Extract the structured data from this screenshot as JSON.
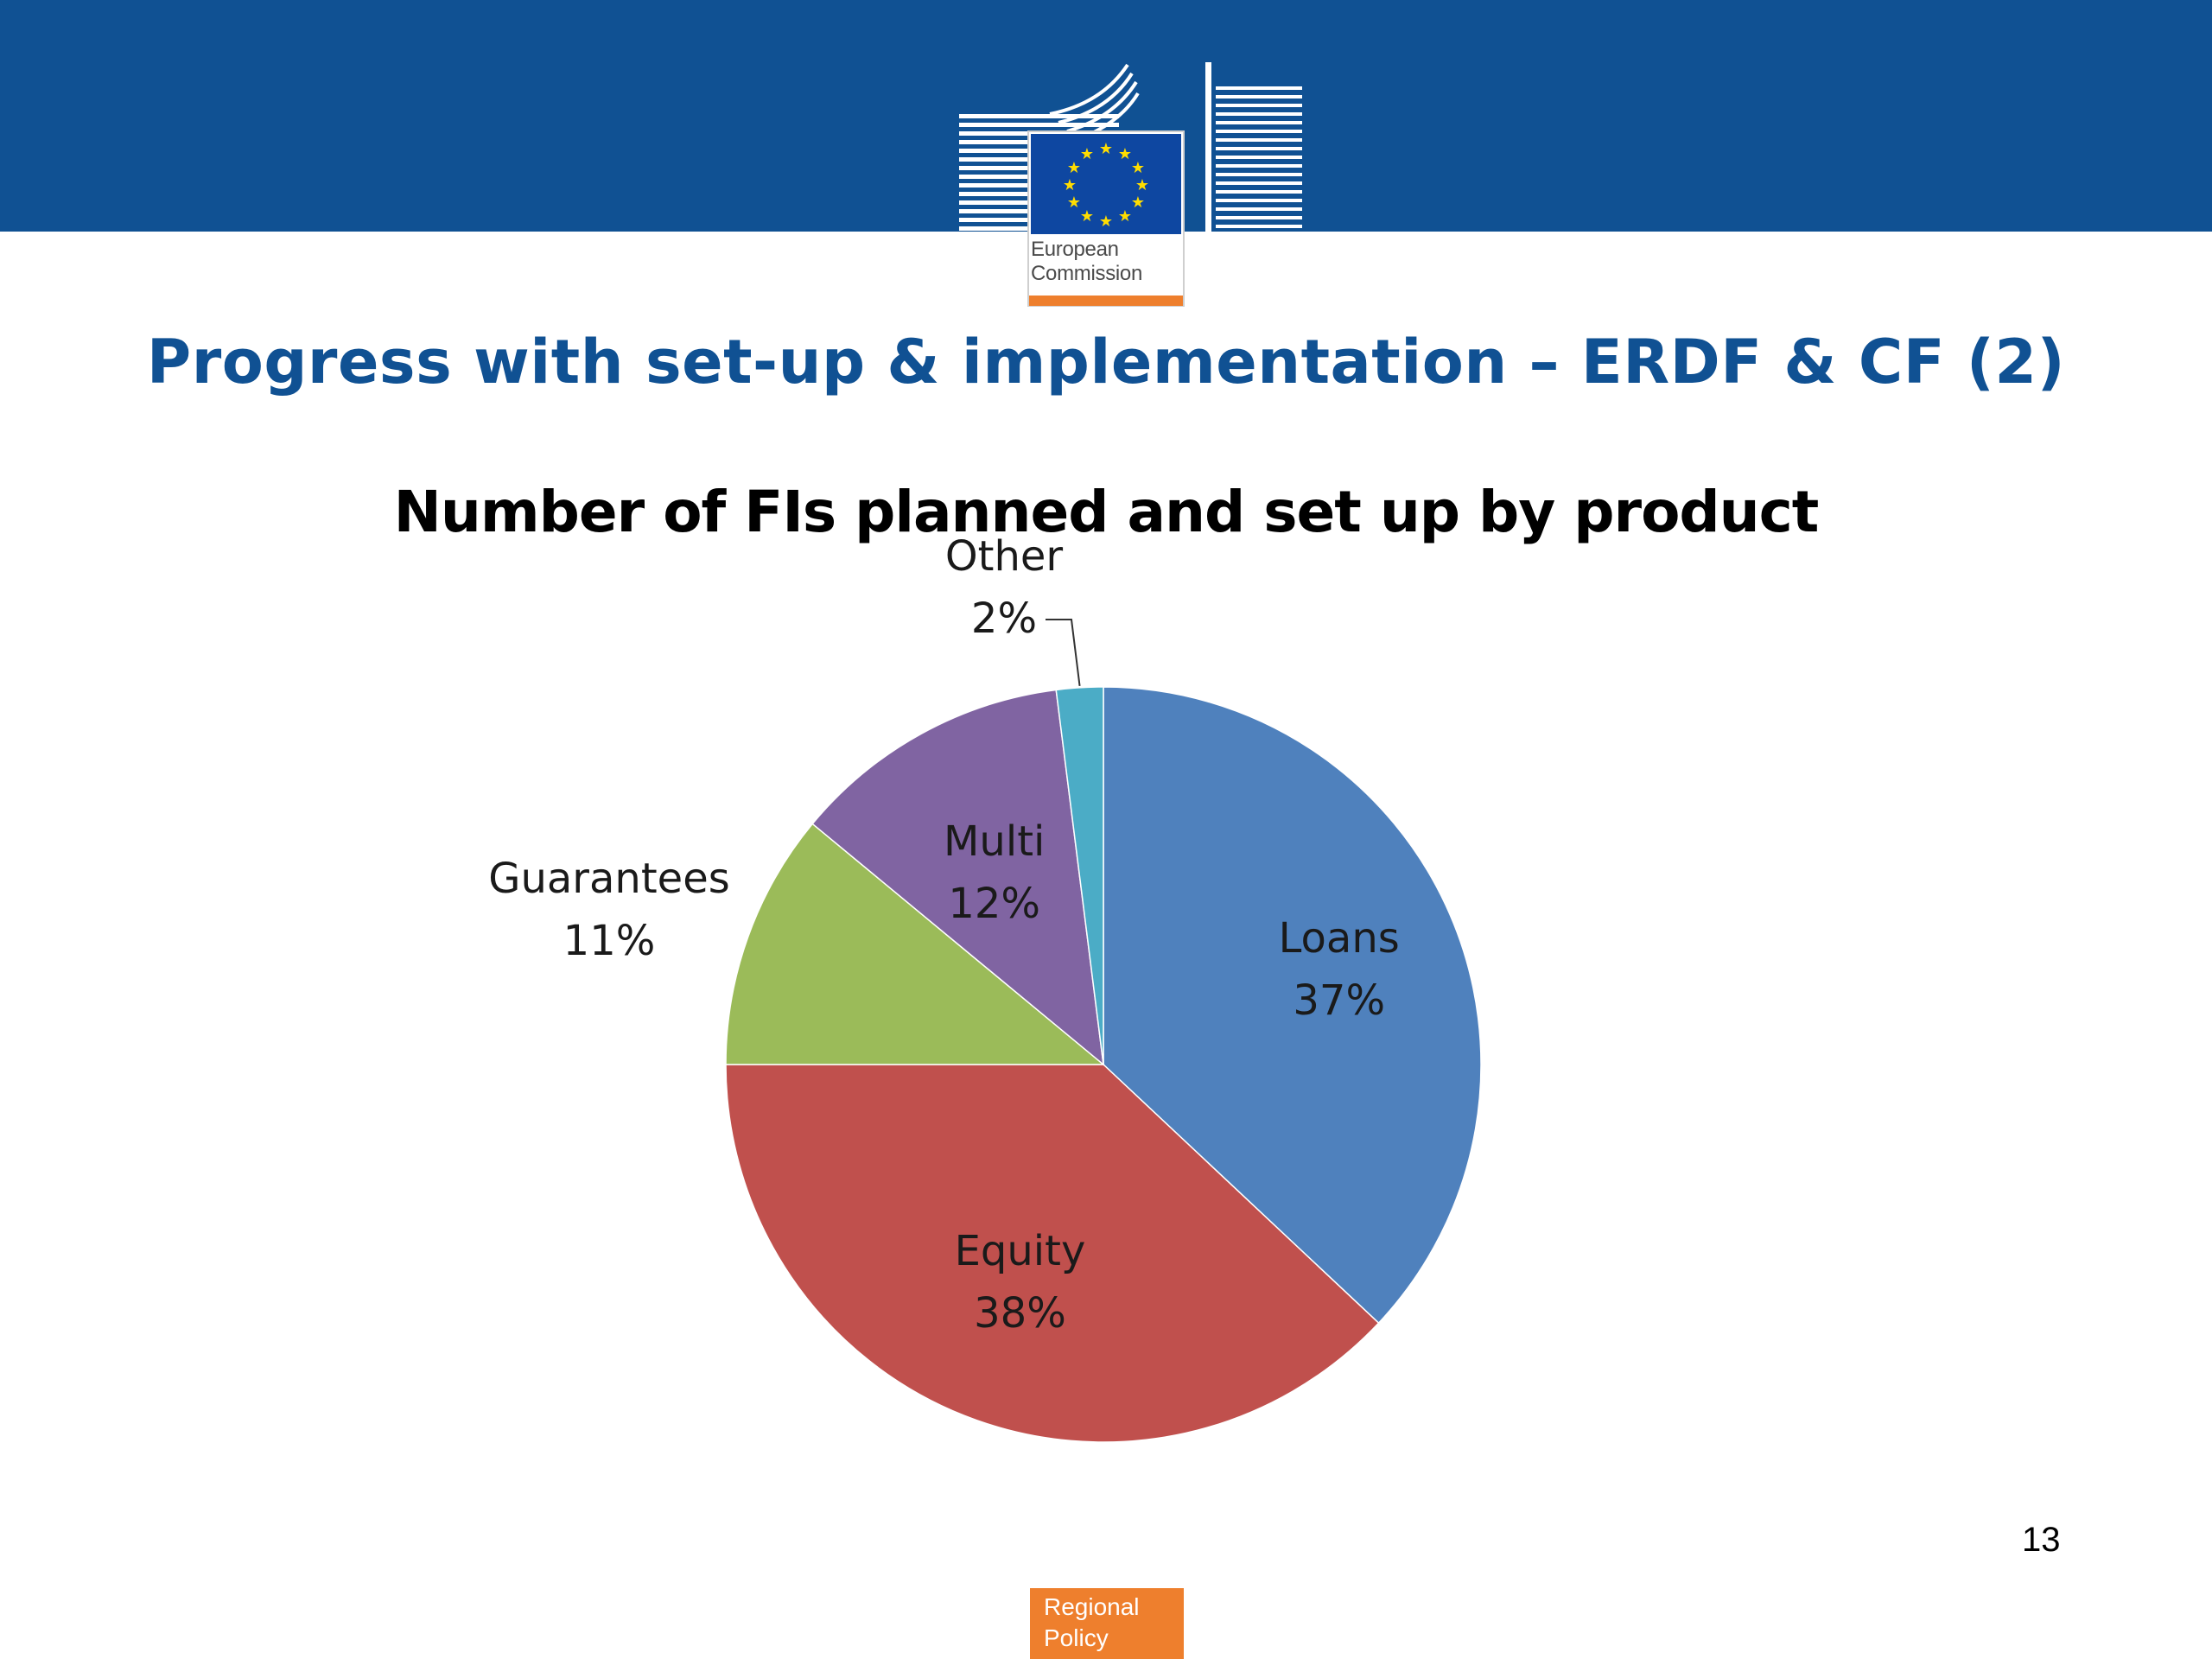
{
  "header": {
    "logo_text_line1": "European",
    "logo_text_line2": "Commission",
    "band_color": "#105193"
  },
  "slide": {
    "title": "Progress with set-up & implementation – ERDF & CF (2)",
    "page_number": "13"
  },
  "footer": {
    "badge_line1": "Regional",
    "badge_line2": "Policy",
    "badge_color": "#ee7f2d"
  },
  "chart_data": {
    "type": "pie",
    "title": "Number of FIs planned and set up by product",
    "slices": [
      {
        "label": "Loans",
        "value": 37,
        "display": "37%",
        "color": "#4f81bd"
      },
      {
        "label": "Equity",
        "value": 38,
        "display": "38%",
        "color": "#c0504d"
      },
      {
        "label": "Guarantees",
        "value": 11,
        "display": "11%",
        "color": "#9bbb59"
      },
      {
        "label": "Multi",
        "value": 12,
        "display": "12%",
        "color": "#8064a2"
      },
      {
        "label": "Other",
        "value": 2,
        "display": "2%",
        "color": "#4bacc6"
      }
    ],
    "start": "12 o'clock",
    "direction": "clockwise"
  }
}
